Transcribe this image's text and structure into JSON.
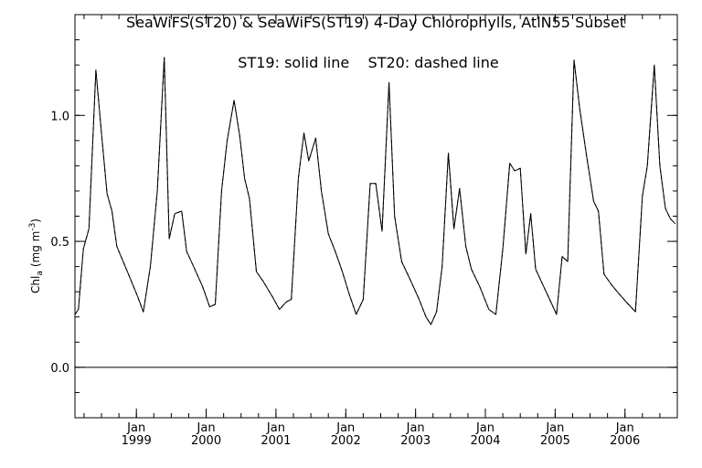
{
  "chart_data": {
    "type": "line",
    "title": "SeaWiFS(ST20) & SeaWiFS(ST19) 4-Day Chlorophylls, AtlN55 Subset",
    "annotation": "ST19: solid line    ST20: dashed line",
    "ylabel": "Chl",
    "ylabel_sub": "a",
    "ylabel_units": "(mg m",
    "ylabel_sup": "-3",
    "ylabel_close": ")",
    "xlim": [
      1998.12,
      2006.75
    ],
    "ylim": [
      -0.2,
      1.4
    ],
    "ytick_values": [
      0.0,
      0.5,
      1.0
    ],
    "ytick_labels": [
      "0.0",
      "0.5",
      "1.0"
    ],
    "yminor_step": 0.1,
    "xticks": [
      {
        "month": "Jan",
        "year": "1999",
        "x": 1999.0
      },
      {
        "month": "Jan",
        "year": "2000",
        "x": 2000.0
      },
      {
        "month": "Jan",
        "year": "2001",
        "x": 2001.0
      },
      {
        "month": "Jan",
        "year": "2002",
        "x": 2002.0
      },
      {
        "month": "Jan",
        "year": "2003",
        "x": 2003.0
      },
      {
        "month": "Jan",
        "year": "2004",
        "x": 2004.0
      },
      {
        "month": "Jan",
        "year": "2005",
        "x": 2005.0
      },
      {
        "month": "Jan",
        "year": "2006",
        "x": 2006.0
      }
    ],
    "xminor_step": 0.25,
    "reference_line_y": 0.0,
    "series": [
      {
        "name": "ST19",
        "style": "solid",
        "points": [
          [
            1998.12,
            0.21
          ],
          [
            1998.17,
            0.23
          ],
          [
            1998.24,
            0.47
          ],
          [
            1998.32,
            0.55
          ],
          [
            1998.42,
            1.18
          ],
          [
            1998.5,
            0.93
          ],
          [
            1998.58,
            0.69
          ],
          [
            1998.65,
            0.62
          ],
          [
            1998.72,
            0.48
          ],
          [
            1998.78,
            0.44
          ],
          [
            1998.9,
            0.36
          ],
          [
            1999.02,
            0.28
          ],
          [
            1999.1,
            0.22
          ],
          [
            1999.2,
            0.4
          ],
          [
            1999.3,
            0.7
          ],
          [
            1999.4,
            1.23
          ],
          [
            1999.47,
            0.51
          ],
          [
            1999.55,
            0.61
          ],
          [
            1999.65,
            0.62
          ],
          [
            1999.72,
            0.46
          ],
          [
            1999.82,
            0.4
          ],
          [
            1999.95,
            0.32
          ],
          [
            2000.05,
            0.24
          ],
          [
            2000.13,
            0.25
          ],
          [
            2000.22,
            0.7
          ],
          [
            2000.3,
            0.9
          ],
          [
            2000.4,
            1.06
          ],
          [
            2000.48,
            0.92
          ],
          [
            2000.55,
            0.75
          ],
          [
            2000.62,
            0.67
          ],
          [
            2000.72,
            0.38
          ],
          [
            2000.82,
            0.34
          ],
          [
            2000.95,
            0.28
          ],
          [
            2001.05,
            0.23
          ],
          [
            2001.15,
            0.26
          ],
          [
            2001.22,
            0.27
          ],
          [
            2001.32,
            0.75
          ],
          [
            2001.4,
            0.93
          ],
          [
            2001.47,
            0.82
          ],
          [
            2001.57,
            0.91
          ],
          [
            2001.65,
            0.7
          ],
          [
            2001.75,
            0.53
          ],
          [
            2001.85,
            0.46
          ],
          [
            2001.95,
            0.38
          ],
          [
            2002.05,
            0.29
          ],
          [
            2002.15,
            0.21
          ],
          [
            2002.25,
            0.27
          ],
          [
            2002.35,
            0.73
          ],
          [
            2002.43,
            0.73
          ],
          [
            2002.52,
            0.54
          ],
          [
            2002.62,
            1.13
          ],
          [
            2002.7,
            0.6
          ],
          [
            2002.8,
            0.42
          ],
          [
            2002.92,
            0.35
          ],
          [
            2003.05,
            0.27
          ],
          [
            2003.15,
            0.2
          ],
          [
            2003.22,
            0.17
          ],
          [
            2003.3,
            0.22
          ],
          [
            2003.38,
            0.4
          ],
          [
            2003.47,
            0.85
          ],
          [
            2003.55,
            0.55
          ],
          [
            2003.63,
            0.71
          ],
          [
            2003.72,
            0.48
          ],
          [
            2003.8,
            0.39
          ],
          [
            2003.92,
            0.32
          ],
          [
            2004.05,
            0.23
          ],
          [
            2004.15,
            0.21
          ],
          [
            2004.25,
            0.47
          ],
          [
            2004.35,
            0.81
          ],
          [
            2004.42,
            0.78
          ],
          [
            2004.5,
            0.79
          ],
          [
            2004.58,
            0.45
          ],
          [
            2004.65,
            0.61
          ],
          [
            2004.72,
            0.39
          ],
          [
            2004.82,
            0.33
          ],
          [
            2004.92,
            0.27
          ],
          [
            2005.02,
            0.21
          ],
          [
            2005.1,
            0.44
          ],
          [
            2005.18,
            0.42
          ],
          [
            2005.27,
            1.22
          ],
          [
            2005.35,
            1.03
          ],
          [
            2005.45,
            0.84
          ],
          [
            2005.55,
            0.66
          ],
          [
            2005.62,
            0.62
          ],
          [
            2005.7,
            0.37
          ],
          [
            2005.8,
            0.33
          ],
          [
            2005.92,
            0.29
          ],
          [
            2006.05,
            0.25
          ],
          [
            2006.15,
            0.22
          ],
          [
            2006.25,
            0.68
          ],
          [
            2006.32,
            0.8
          ],
          [
            2006.42,
            1.2
          ],
          [
            2006.5,
            0.8
          ],
          [
            2006.58,
            0.63
          ],
          [
            2006.65,
            0.59
          ],
          [
            2006.72,
            0.57
          ]
        ]
      },
      {
        "name": "ST20",
        "style": "dashed",
        "points": [
          [
            1998.12,
            0.21
          ],
          [
            1998.17,
            0.23
          ],
          [
            1998.24,
            0.47
          ],
          [
            1998.32,
            0.55
          ],
          [
            1998.42,
            1.18
          ],
          [
            1998.5,
            0.93
          ],
          [
            1998.58,
            0.69
          ],
          [
            1998.65,
            0.62
          ],
          [
            1998.72,
            0.48
          ],
          [
            1998.78,
            0.44
          ],
          [
            1998.9,
            0.36
          ],
          [
            1999.02,
            0.28
          ],
          [
            1999.1,
            0.22
          ],
          [
            1999.2,
            0.4
          ],
          [
            1999.3,
            0.7
          ],
          [
            1999.4,
            1.23
          ],
          [
            1999.47,
            0.51
          ],
          [
            1999.55,
            0.61
          ],
          [
            1999.65,
            0.62
          ],
          [
            1999.72,
            0.46
          ],
          [
            1999.82,
            0.4
          ],
          [
            1999.95,
            0.32
          ],
          [
            2000.05,
            0.24
          ],
          [
            2000.13,
            0.25
          ],
          [
            2000.22,
            0.7
          ],
          [
            2000.3,
            0.9
          ],
          [
            2000.4,
            1.06
          ],
          [
            2000.48,
            0.92
          ],
          [
            2000.55,
            0.75
          ],
          [
            2000.62,
            0.67
          ],
          [
            2000.72,
            0.38
          ],
          [
            2000.82,
            0.34
          ],
          [
            2000.95,
            0.28
          ],
          [
            2001.05,
            0.23
          ],
          [
            2001.15,
            0.26
          ],
          [
            2001.22,
            0.27
          ],
          [
            2001.32,
            0.75
          ],
          [
            2001.4,
            0.93
          ],
          [
            2001.47,
            0.82
          ],
          [
            2001.57,
            0.91
          ],
          [
            2001.65,
            0.7
          ],
          [
            2001.75,
            0.53
          ],
          [
            2001.85,
            0.46
          ],
          [
            2001.95,
            0.38
          ],
          [
            2002.05,
            0.29
          ],
          [
            2002.15,
            0.21
          ],
          [
            2002.25,
            0.27
          ],
          [
            2002.35,
            0.73
          ],
          [
            2002.43,
            0.73
          ],
          [
            2002.52,
            0.54
          ],
          [
            2002.62,
            1.13
          ],
          [
            2002.7,
            0.6
          ],
          [
            2002.8,
            0.42
          ],
          [
            2002.92,
            0.35
          ],
          [
            2003.05,
            0.27
          ],
          [
            2003.15,
            0.2
          ],
          [
            2003.22,
            0.17
          ],
          [
            2003.3,
            0.22
          ],
          [
            2003.38,
            0.4
          ],
          [
            2003.47,
            0.85
          ],
          [
            2003.55,
            0.55
          ],
          [
            2003.63,
            0.71
          ],
          [
            2003.72,
            0.48
          ],
          [
            2003.8,
            0.39
          ],
          [
            2003.92,
            0.32
          ],
          [
            2004.05,
            0.23
          ],
          [
            2004.15,
            0.21
          ],
          [
            2004.25,
            0.47
          ],
          [
            2004.35,
            0.81
          ],
          [
            2004.42,
            0.78
          ],
          [
            2004.5,
            0.79
          ],
          [
            2004.58,
            0.45
          ],
          [
            2004.65,
            0.61
          ],
          [
            2004.72,
            0.39
          ],
          [
            2004.82,
            0.33
          ],
          [
            2004.92,
            0.27
          ],
          [
            2005.02,
            0.21
          ],
          [
            2005.1,
            0.44
          ],
          [
            2005.18,
            0.42
          ],
          [
            2005.27,
            1.22
          ],
          [
            2005.35,
            1.03
          ],
          [
            2005.45,
            0.84
          ],
          [
            2005.55,
            0.66
          ],
          [
            2005.62,
            0.62
          ],
          [
            2005.7,
            0.37
          ],
          [
            2005.8,
            0.33
          ],
          [
            2005.92,
            0.29
          ],
          [
            2006.05,
            0.25
          ],
          [
            2006.15,
            0.22
          ],
          [
            2006.25,
            0.68
          ],
          [
            2006.32,
            0.8
          ],
          [
            2006.42,
            1.2
          ],
          [
            2006.5,
            0.8
          ],
          [
            2006.58,
            0.63
          ],
          [
            2006.65,
            0.59
          ],
          [
            2006.72,
            0.57
          ]
        ]
      }
    ],
    "grid": false,
    "colors": {
      "line": "#000000",
      "background": "#ffffff"
    }
  }
}
